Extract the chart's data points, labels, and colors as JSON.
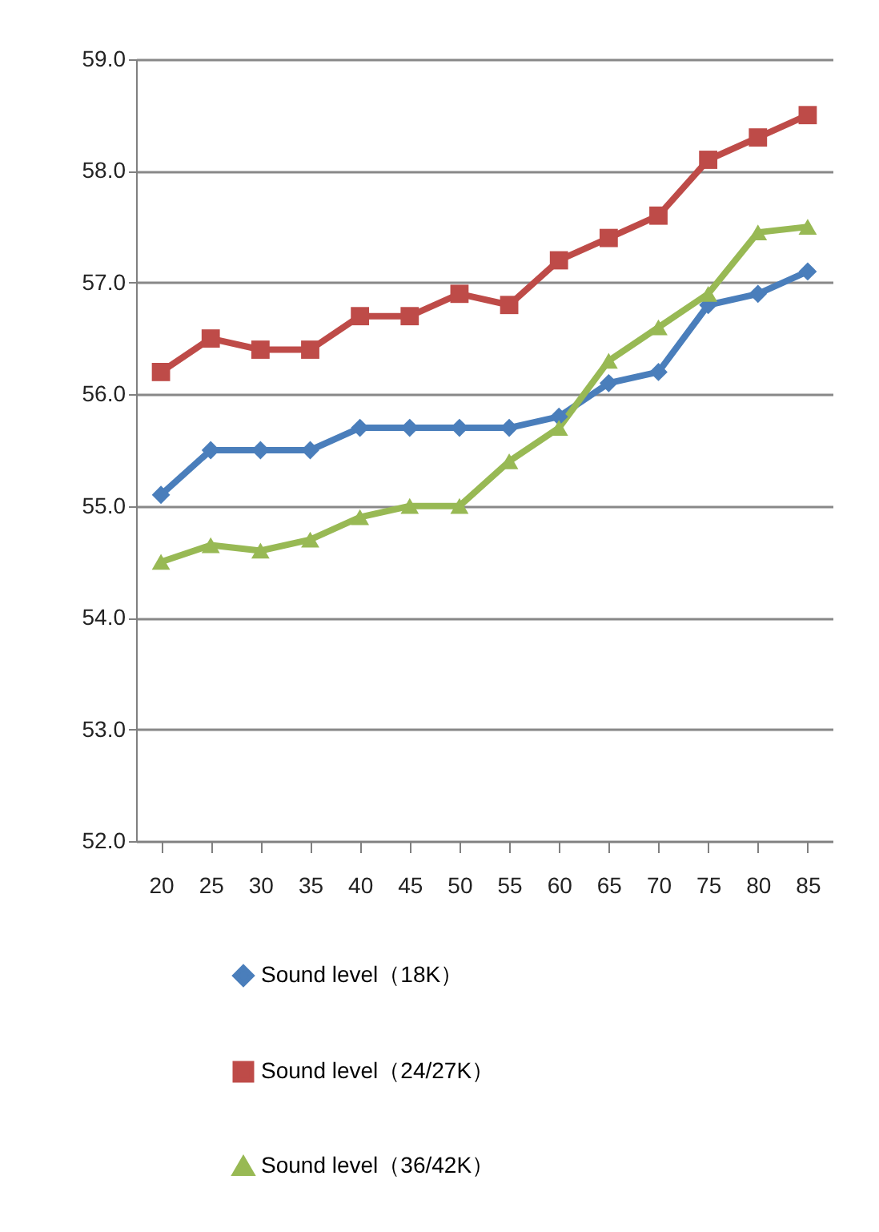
{
  "chart_data": {
    "type": "line",
    "categories": [
      "20",
      "25",
      "30",
      "35",
      "40",
      "45",
      "50",
      "55",
      "60",
      "65",
      "70",
      "75",
      "80",
      "85"
    ],
    "series": [
      {
        "name": "Sound level（18K）",
        "color": "#4a7ebb",
        "marker": "diamond",
        "values": [
          55.1,
          55.5,
          55.5,
          55.5,
          55.7,
          55.7,
          55.7,
          55.7,
          55.8,
          56.1,
          56.2,
          56.8,
          56.9,
          57.1
        ]
      },
      {
        "name": "Sound level（24/27K）",
        "color": "#be4b48",
        "marker": "square",
        "values": [
          56.2,
          56.5,
          56.4,
          56.4,
          56.7,
          56.7,
          56.9,
          56.8,
          57.2,
          57.4,
          57.6,
          58.1,
          58.3,
          58.5
        ]
      },
      {
        "name": "Sound level（36/42K）",
        "color": "#98b954",
        "marker": "triangle",
        "values": [
          54.5,
          54.65,
          54.6,
          54.7,
          54.9,
          55.0,
          55.0,
          55.4,
          55.7,
          56.3,
          56.6,
          56.9,
          57.45,
          57.5
        ]
      }
    ],
    "ylim": [
      52,
      59
    ],
    "yticks": [
      {
        "value": 52,
        "label": "52.0"
      },
      {
        "value": 53,
        "label": "53.0"
      },
      {
        "value": 54,
        "label": "54.0"
      },
      {
        "value": 55,
        "label": "55.0"
      },
      {
        "value": 56,
        "label": "56.0"
      },
      {
        "value": 57,
        "label": "57.0"
      },
      {
        "value": 58,
        "label": "58.0"
      },
      {
        "value": 59,
        "label": "59.0"
      }
    ],
    "grid": "y",
    "legend": "bottom",
    "line_style": "solid"
  }
}
